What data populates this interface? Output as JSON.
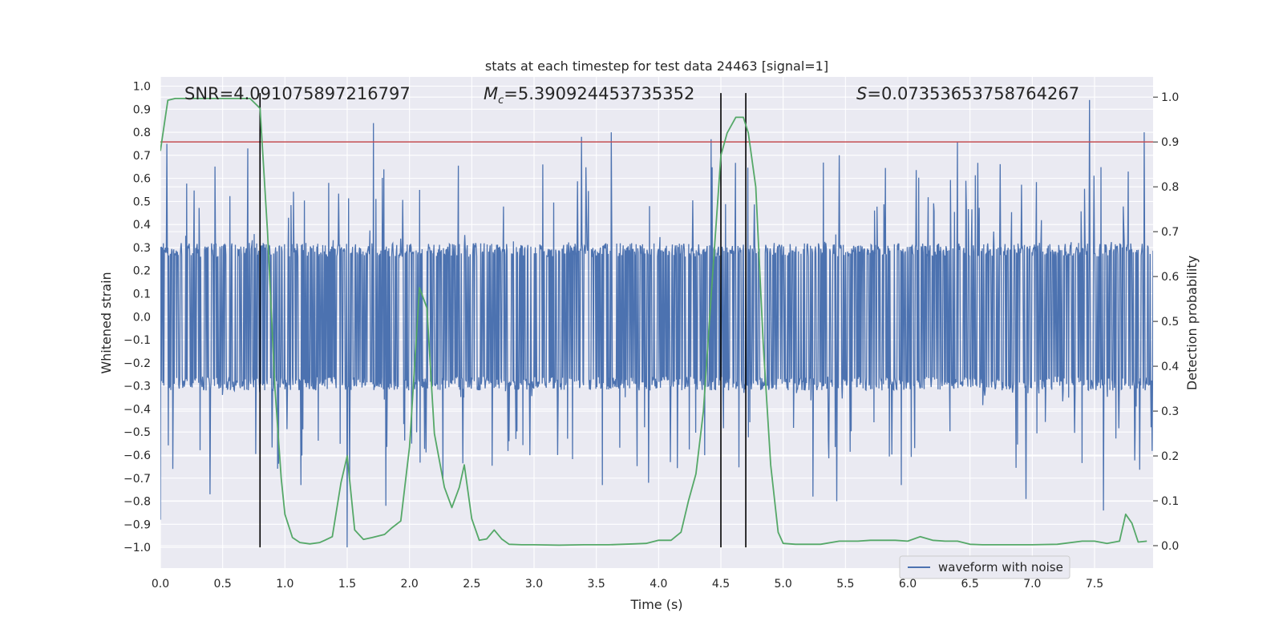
{
  "chart_data": {
    "type": "line",
    "title": "stats at each timestep for test data 24463 [signal=1]",
    "xlabel": "Time (s)",
    "ylabel_left": "Whitened strain",
    "ylabel_right": "Detection probability",
    "xlim": [
      0,
      7.97
    ],
    "ylim_left": [
      -1.09,
      1.04
    ],
    "ylim_right": [
      -0.05,
      1.045
    ],
    "xticks": [
      "0.0",
      "0.5",
      "1.0",
      "1.5",
      "2.0",
      "2.5",
      "3.0",
      "3.5",
      "4.0",
      "4.5",
      "5.0",
      "5.5",
      "6.0",
      "6.5",
      "7.0",
      "7.5"
    ],
    "yticks_left": [
      "1.0",
      "0.9",
      "0.8",
      "0.7",
      "0.6",
      "0.5",
      "0.4",
      "0.3",
      "0.2",
      "0.1",
      "0.0",
      "-0.1",
      "-0.2",
      "-0.3",
      "-0.4",
      "-0.5",
      "-0.6",
      "-0.7",
      "-0.8",
      "-0.9",
      "-1.0"
    ],
    "yticks_right": [
      "1.0",
      "0.9",
      "0.8",
      "0.7",
      "0.6",
      "0.5",
      "0.4",
      "0.3",
      "0.2",
      "0.1",
      "0.0"
    ],
    "annotations": {
      "snr": "SNR=4.091075897216797",
      "mc_symbol": "M",
      "mc_sub": "c",
      "mc_value": "=5.390924453735352",
      "s_symbol": "S",
      "s_value": "=0.07353653758764267"
    },
    "legend": {
      "label": "waveform with noise",
      "location": "lower-right"
    },
    "threshold": {
      "value": 0.9,
      "axis": "right",
      "color": "#c44e52"
    },
    "vertical_lines": [
      0.8,
      4.5,
      4.7
    ],
    "vertical_line_range": [
      -1.0,
      0.97
    ],
    "waveform": {
      "name": "waveform with noise",
      "color": "#4c72b0",
      "samples": 2000,
      "core_amplitude": 0.28,
      "spikes": [
        {
          "t": 0.0,
          "v": -0.88
        },
        {
          "t": 0.05,
          "v": 0.75
        },
        {
          "t": 0.1,
          "v": -0.66
        },
        {
          "t": 0.4,
          "v": -0.77
        },
        {
          "t": 0.7,
          "v": 0.73
        },
        {
          "t": 1.13,
          "v": -0.73
        },
        {
          "t": 1.5,
          "v": -1.0
        },
        {
          "t": 1.52,
          "v": -0.7
        },
        {
          "t": 1.71,
          "v": 0.84
        },
        {
          "t": 1.81,
          "v": -0.82
        },
        {
          "t": 2.27,
          "v": -0.7
        },
        {
          "t": 3.38,
          "v": 0.78
        },
        {
          "t": 3.55,
          "v": -0.73
        },
        {
          "t": 3.62,
          "v": 0.8
        },
        {
          "t": 3.92,
          "v": -0.72
        },
        {
          "t": 4.42,
          "v": 0.77
        },
        {
          "t": 5.24,
          "v": -0.78
        },
        {
          "t": 5.43,
          "v": -0.8
        },
        {
          "t": 5.45,
          "v": 0.7
        },
        {
          "t": 5.95,
          "v": -0.73
        },
        {
          "t": 6.4,
          "v": 0.76
        },
        {
          "t": 6.95,
          "v": -0.79
        },
        {
          "t": 7.46,
          "v": 0.94
        },
        {
          "t": 7.57,
          "v": -0.84
        },
        {
          "t": 7.9,
          "v": 0.8
        }
      ]
    },
    "probability": {
      "name": "detection probability",
      "color": "#55a868",
      "x": [
        0.0,
        0.06,
        0.12,
        0.3,
        0.5,
        0.72,
        0.8,
        0.86,
        0.92,
        0.97,
        1.0,
        1.06,
        1.12,
        1.2,
        1.28,
        1.32,
        1.38,
        1.45,
        1.5,
        1.56,
        1.63,
        1.7,
        1.8,
        1.86,
        1.93,
        2.0,
        2.08,
        2.14,
        2.2,
        2.28,
        2.34,
        2.4,
        2.44,
        2.5,
        2.56,
        2.62,
        2.68,
        2.74,
        2.8,
        2.9,
        3.0,
        3.2,
        3.4,
        3.6,
        3.8,
        3.9,
        4.0,
        4.1,
        4.18,
        4.24,
        4.3,
        4.36,
        4.42,
        4.5,
        4.55,
        4.62,
        4.68,
        4.72,
        4.78,
        4.84,
        4.9,
        4.96,
        5.0,
        5.1,
        5.3,
        5.45,
        5.6,
        5.7,
        5.8,
        5.9,
        6.0,
        6.1,
        6.2,
        6.3,
        6.4,
        6.5,
        6.6,
        6.8,
        7.0,
        7.2,
        7.4,
        7.5,
        7.6,
        7.7,
        7.75,
        7.8,
        7.85,
        7.92
      ],
      "y": [
        0.88,
        0.993,
        0.997,
        0.997,
        0.997,
        0.997,
        0.975,
        0.7,
        0.35,
        0.15,
        0.07,
        0.018,
        0.007,
        0.004,
        0.007,
        0.012,
        0.02,
        0.14,
        0.2,
        0.035,
        0.014,
        0.018,
        0.025,
        0.04,
        0.055,
        0.22,
        0.575,
        0.53,
        0.25,
        0.13,
        0.085,
        0.13,
        0.18,
        0.06,
        0.012,
        0.015,
        0.035,
        0.015,
        0.003,
        0.002,
        0.002,
        0.001,
        0.002,
        0.002,
        0.004,
        0.005,
        0.012,
        0.012,
        0.03,
        0.1,
        0.16,
        0.3,
        0.55,
        0.87,
        0.92,
        0.955,
        0.955,
        0.92,
        0.8,
        0.45,
        0.18,
        0.03,
        0.005,
        0.003,
        0.003,
        0.01,
        0.01,
        0.012,
        0.012,
        0.012,
        0.01,
        0.02,
        0.012,
        0.01,
        0.01,
        0.003,
        0.002,
        0.002,
        0.002,
        0.003,
        0.01,
        0.01,
        0.005,
        0.01,
        0.07,
        0.05,
        0.008,
        0.01
      ]
    }
  }
}
